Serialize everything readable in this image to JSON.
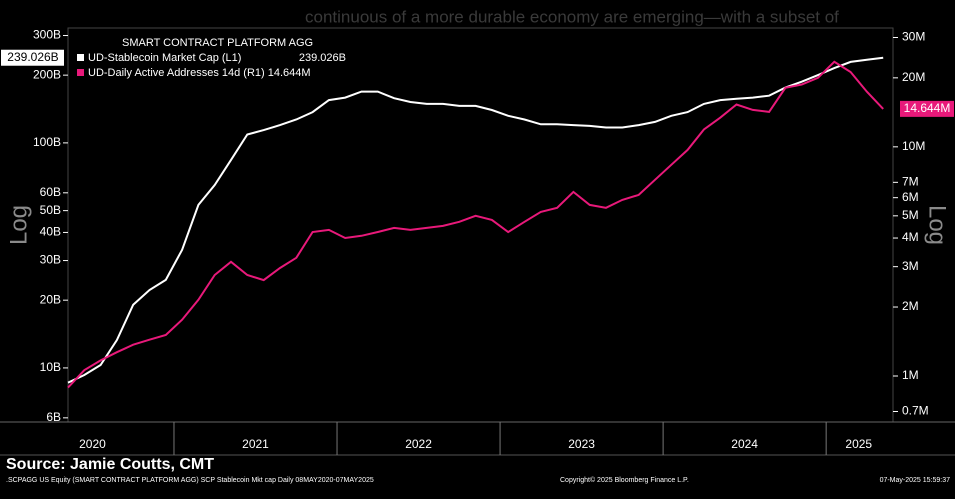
{
  "chart_data": {
    "type": "line",
    "overlay_text": "continuous of a more durable economy are emerging—with a subset of",
    "legend_title": "SMART CONTRACT PLATFORM AGG",
    "y_label": "Log",
    "y2_label": "Log",
    "source": "Source: Jamie Coutts, CMT",
    "footer_left": ".SCPAGG US Equity (SMART CONTRACT PLATFORM AGG) SCP Stablecoin Mkt cap  Daily 08MAY2020-07MAY2025",
    "footer_center": "Copyright© 2025 Bloomberg Finance L.P.",
    "footer_right": "07-May-2025 15:59:37",
    "log_scale": true,
    "xlim": [
      2020.35,
      2025.41
    ],
    "xticks": [
      {
        "value": 2020.5,
        "label": "2020"
      },
      {
        "value": 2021.5,
        "label": "2021"
      },
      {
        "value": 2022.5,
        "label": "2022"
      },
      {
        "value": 2023.5,
        "label": "2023"
      },
      {
        "value": 2024.5,
        "label": "2024"
      },
      {
        "value": 2025.2,
        "label": "2025"
      }
    ],
    "x_separators": [
      2021,
      2022,
      2023,
      2024,
      2025
    ],
    "ylim": [
      5.75,
      324
    ],
    "yticks": [
      {
        "value": 300,
        "label": "300B"
      },
      {
        "value": 200,
        "label": "200B"
      },
      {
        "value": 100,
        "label": "100B"
      },
      {
        "value": 60,
        "label": "60B"
      },
      {
        "value": 50,
        "label": "50B"
      },
      {
        "value": 40,
        "label": "40B"
      },
      {
        "value": 30,
        "label": "30B"
      },
      {
        "value": 20,
        "label": "20B"
      },
      {
        "value": 10,
        "label": "10B"
      },
      {
        "value": 6,
        "label": "6B"
      }
    ],
    "y2lim": [
      0.63,
      33
    ],
    "y2ticks": [
      {
        "value": 30,
        "label": "30M"
      },
      {
        "value": 20,
        "label": "20M"
      },
      {
        "value": 10,
        "label": "10M"
      },
      {
        "value": 7,
        "label": "7M"
      },
      {
        "value": 6,
        "label": "6M"
      },
      {
        "value": 5,
        "label": "5M"
      },
      {
        "value": 4,
        "label": "4M"
      },
      {
        "value": 3,
        "label": "3M"
      },
      {
        "value": 2,
        "label": "2M"
      },
      {
        "value": 1,
        "label": "1M"
      },
      {
        "value": 0.7,
        "label": "0.7M"
      }
    ],
    "x": [
      2020.35,
      2020.45,
      2020.55,
      2020.65,
      2020.75,
      2020.85,
      2020.95,
      2021.05,
      2021.15,
      2021.25,
      2021.35,
      2021.45,
      2021.55,
      2021.65,
      2021.75,
      2021.85,
      2021.95,
      2022.05,
      2022.15,
      2022.25,
      2022.35,
      2022.45,
      2022.55,
      2022.65,
      2022.75,
      2022.85,
      2022.95,
      2023.05,
      2023.15,
      2023.25,
      2023.35,
      2023.45,
      2023.55,
      2023.65,
      2023.75,
      2023.85,
      2023.95,
      2024.05,
      2024.15,
      2024.25,
      2024.35,
      2024.45,
      2024.55,
      2024.65,
      2024.75,
      2024.85,
      2024.95,
      2025.05,
      2025.15,
      2025.25,
      2025.35
    ],
    "series": [
      {
        "name": "UD-Stablecoin Market Cap  (L1)",
        "color": "#ffffff",
        "axis": "y",
        "last_value_label": "239.026B",
        "values": [
          8.6,
          9.3,
          10.3,
          13.3,
          19.1,
          22.2,
          24.6,
          33.5,
          53,
          65,
          84,
          109,
          114,
          120,
          127,
          137,
          155,
          159,
          169,
          169,
          158,
          152,
          149,
          149,
          146,
          146,
          140,
          132,
          127,
          121,
          121,
          120,
          119,
          117,
          117,
          120,
          124,
          132,
          137,
          149,
          155,
          157,
          159,
          162,
          176,
          187,
          200,
          215,
          229,
          234,
          239.026
        ]
      },
      {
        "name": "UD-Daily Active Addresses 14d  (R1) 14.644M",
        "color": "#e8197a",
        "axis": "y2",
        "last_value_label": "14.644M",
        "values": [
          0.89,
          1.06,
          1.17,
          1.27,
          1.37,
          1.44,
          1.51,
          1.76,
          2.15,
          2.76,
          3.15,
          2.76,
          2.62,
          2.96,
          3.28,
          4.25,
          4.34,
          4.0,
          4.09,
          4.25,
          4.43,
          4.34,
          4.43,
          4.52,
          4.71,
          5.0,
          4.8,
          4.25,
          4.71,
          5.2,
          5.42,
          6.36,
          5.58,
          5.42,
          5.87,
          6.17,
          7.18,
          8.35,
          9.7,
          11.9,
          13.4,
          15.3,
          14.5,
          14.2,
          18.1,
          18.7,
          20.0,
          23.5,
          21.2,
          17.4,
          14.644
        ]
      }
    ]
  }
}
